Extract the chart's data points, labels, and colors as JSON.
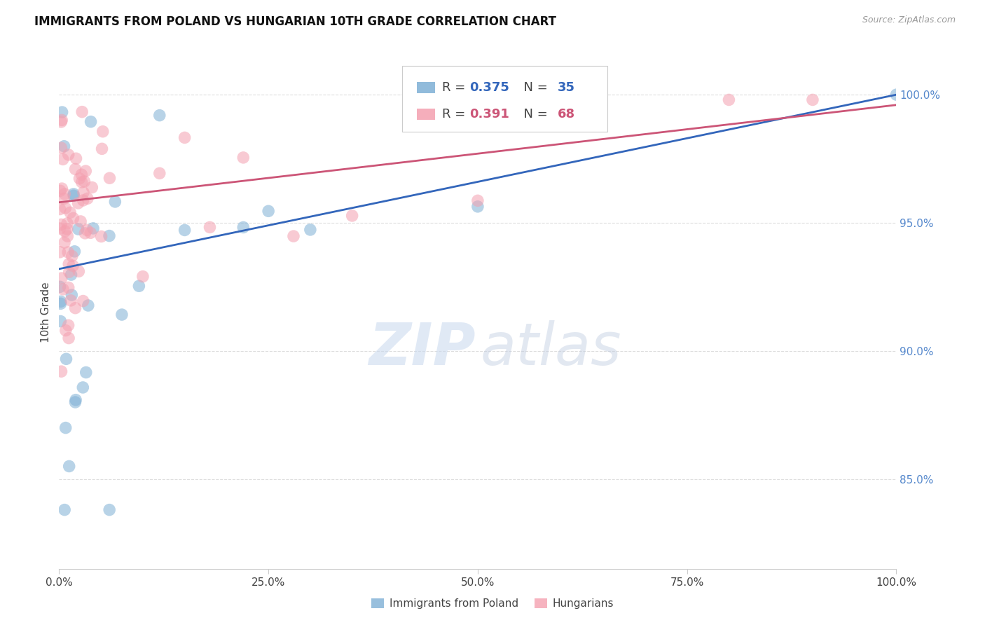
{
  "title": "IMMIGRANTS FROM POLAND VS HUNGARIAN 10TH GRADE CORRELATION CHART",
  "source": "Source: ZipAtlas.com",
  "ylabel": "10th Grade",
  "ytick_values": [
    0.85,
    0.9,
    0.95,
    1.0
  ],
  "ytick_labels": [
    "85.0%",
    "90.0%",
    "95.0%",
    "100.0%"
  ],
  "xtick_values": [
    0.0,
    0.25,
    0.5,
    0.75,
    1.0
  ],
  "xtick_labels": [
    "0.0%",
    "25.0%",
    "50.0%",
    "75.0%",
    "100.0%"
  ],
  "blue_color": "#7EB0D5",
  "pink_color": "#F4A0B0",
  "line_blue": "#3366BB",
  "line_pink": "#CC5577",
  "blue_R": 0.375,
  "blue_N": 35,
  "pink_R": 0.391,
  "pink_N": 68,
  "ylim_min": 0.815,
  "ylim_max": 1.015,
  "xlim_min": 0.0,
  "xlim_max": 1.0,
  "background_color": "#FFFFFF",
  "grid_color": "#DDDDDD",
  "watermark_zip_color": "#C8D8EE",
  "watermark_atlas_color": "#C0CCE0"
}
